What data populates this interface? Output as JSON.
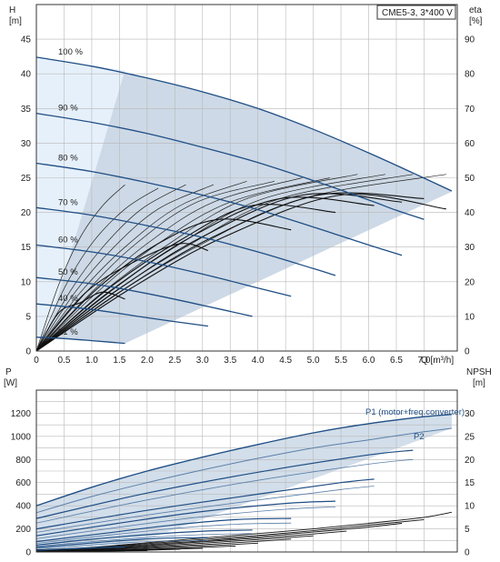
{
  "chart_data": [
    {
      "type": "line",
      "title": "",
      "model_label": "CME5-3, 3*400 V",
      "xlabel": "Q [m³/h]",
      "ylabel": "H",
      "ylabel_unit": "[m]",
      "y2label": "eta",
      "y2label_unit": "[%]",
      "xlim": [
        0,
        7.6
      ],
      "ylim": [
        0,
        50
      ],
      "y2lim": [
        0,
        100
      ],
      "x_ticks": [
        0,
        0.5,
        1.0,
        1.5,
        2.0,
        2.5,
        3.0,
        3.5,
        4.0,
        4.5,
        5.0,
        5.5,
        6.0,
        6.5,
        7.0
      ],
      "x_tick_labels": [
        "0",
        "0.5",
        "1.0",
        "1.5",
        "2.0",
        "2.5",
        "3.0",
        "3.5",
        "4.0",
        "4.5",
        "5.0",
        "5.5",
        "6.0",
        "6.5",
        "7.0"
      ],
      "y_ticks": [
        0,
        5,
        10,
        15,
        20,
        25,
        30,
        35,
        40,
        45
      ],
      "y2_ticks": [
        0,
        10,
        20,
        30,
        40,
        50,
        60,
        70,
        80,
        90
      ],
      "grid": true,
      "colors": {
        "curve": "#1f4e85",
        "area": "#cdd9e6",
        "area_light": "#e6f0fa",
        "eta": "#222222",
        "eta_bold": "#111111"
      },
      "series": [
        {
          "name": "100 %",
          "x": [
            0,
            1.0,
            2.0,
            3.0,
            4.0,
            5.0,
            6.0,
            6.8,
            7.5
          ],
          "values": [
            42.4,
            41.1,
            39.4,
            37.4,
            35.0,
            32.0,
            28.6,
            25.7,
            23.1
          ]
        },
        {
          "name": "90 %",
          "x": [
            0,
            1.0,
            2.0,
            3.0,
            4.0,
            5.0,
            6.0,
            6.5,
            7.0
          ],
          "values": [
            34.3,
            33.0,
            31.4,
            29.4,
            27.2,
            24.6,
            21.8,
            20.3,
            19.0
          ]
        },
        {
          "name": "80 %",
          "x": [
            0,
            1.0,
            2.0,
            3.0,
            4.0,
            5.0,
            5.5,
            6.0,
            6.6
          ],
          "values": [
            27.1,
            25.9,
            24.3,
            22.5,
            20.4,
            17.9,
            16.6,
            15.3,
            13.8
          ]
        },
        {
          "name": "70 %",
          "x": [
            0,
            1.0,
            2.0,
            3.0,
            4.0,
            5.0,
            5.4
          ],
          "values": [
            20.7,
            19.6,
            18.1,
            16.4,
            14.3,
            11.9,
            10.9
          ]
        },
        {
          "name": "60 %",
          "x": [
            0,
            1.0,
            2.0,
            3.0,
            4.0,
            4.6
          ],
          "values": [
            15.3,
            14.3,
            12.9,
            11.1,
            9.1,
            7.9
          ]
        },
        {
          "name": "50 %",
          "x": [
            0,
            1.0,
            2.0,
            3.0,
            3.9
          ],
          "values": [
            10.6,
            9.7,
            8.3,
            6.6,
            5.0
          ]
        },
        {
          "name": "40 %",
          "x": [
            0,
            1.0,
            2.0,
            3.1
          ],
          "values": [
            6.8,
            6.0,
            4.8,
            3.6
          ]
        },
        {
          "name": "21 %",
          "x": [
            0,
            0.5,
            1.0,
            1.6
          ],
          "values": [
            2.0,
            1.8,
            1.5,
            1.1
          ]
        }
      ],
      "eta_curves": [
        {
          "x": [
            0,
            0.4,
            0.8,
            1.2,
            1.6
          ],
          "values": [
            0,
            19,
            33,
            42,
            48
          ]
        },
        {
          "x": [
            0,
            0.5,
            1.0,
            1.6,
            2.2
          ],
          "values": [
            0,
            18,
            31,
            41,
            47
          ]
        },
        {
          "x": [
            0,
            0.6,
            1.2,
            1.9,
            2.7
          ],
          "values": [
            0,
            17,
            30,
            41,
            48
          ]
        },
        {
          "x": [
            0,
            0.7,
            1.4,
            2.2,
            3.2
          ],
          "values": [
            0,
            17,
            30,
            41,
            48
          ]
        },
        {
          "x": [
            0,
            0.8,
            1.6,
            2.6,
            3.8
          ],
          "values": [
            0,
            17,
            30,
            42,
            49
          ]
        },
        {
          "x": [
            0,
            0.9,
            1.8,
            2.9,
            4.3
          ],
          "values": [
            0,
            17,
            31,
            43,
            49
          ]
        },
        {
          "x": [
            0,
            1.0,
            2.0,
            3.2,
            4.8
          ],
          "values": [
            0,
            17,
            31,
            43,
            50
          ]
        },
        {
          "x": [
            0,
            1.1,
            2.2,
            3.5,
            5.3
          ],
          "values": [
            0,
            17,
            31,
            43,
            50
          ]
        },
        {
          "x": [
            0,
            1.2,
            2.4,
            3.8,
            5.8
          ],
          "values": [
            0,
            17,
            31,
            44,
            51
          ]
        },
        {
          "x": [
            0,
            1.3,
            2.6,
            4.1,
            6.3
          ],
          "values": [
            0,
            17,
            31,
            44,
            51
          ]
        },
        {
          "x": [
            0,
            1.4,
            2.8,
            4.4,
            6.8
          ],
          "values": [
            0,
            17,
            31,
            44,
            51
          ]
        },
        {
          "x": [
            0,
            1.5,
            3.0,
            4.8,
            7.4
          ],
          "values": [
            0,
            17,
            31,
            44,
            51
          ]
        },
        {
          "x": [
            0,
            0.4,
            0.8,
            1.2,
            1.6
          ],
          "values": [
            0,
            11,
            14,
            17,
            15
          ]
        },
        {
          "x": [
            0,
            0.9,
            1.8,
            2.6,
            3.1
          ],
          "values": [
            0,
            17,
            26,
            31,
            29
          ]
        },
        {
          "x": [
            0,
            1.1,
            2.2,
            3.3,
            4.6
          ],
          "values": [
            0,
            18,
            31,
            38,
            35
          ]
        },
        {
          "x": [
            0,
            1.3,
            2.6,
            3.9,
            5.4
          ],
          "values": [
            0,
            18,
            32,
            42,
            40
          ]
        },
        {
          "x": [
            0,
            1.4,
            2.8,
            4.4,
            6.1
          ],
          "values": [
            0,
            18,
            33,
            44,
            42
          ]
        },
        {
          "x": [
            0,
            1.5,
            3.0,
            4.8,
            6.6
          ],
          "values": [
            0,
            18,
            33,
            45,
            43
          ]
        },
        {
          "x": [
            0,
            1.6,
            3.2,
            5.1,
            7.0
          ],
          "values": [
            0,
            18,
            33,
            45,
            44
          ]
        },
        {
          "x": [
            0,
            1.7,
            3.4,
            5.5,
            7.4
          ],
          "values": [
            0,
            18,
            33,
            45,
            41
          ]
        }
      ]
    },
    {
      "type": "line",
      "title": "",
      "xlabel": "",
      "ylabel": "P",
      "ylabel_unit": "[W]",
      "y2label": "NPSH",
      "y2label_unit": "[m]",
      "xlim": [
        0,
        7.6
      ],
      "ylim": [
        0,
        1400
      ],
      "y2lim": [
        0,
        35
      ],
      "y_ticks": [
        0,
        200,
        400,
        600,
        800,
        1000,
        1200
      ],
      "y2_ticks": [
        0,
        5,
        10,
        15,
        20,
        25,
        30
      ],
      "grid": true,
      "colors": {
        "p1": "#1f4e85",
        "p2": "#5a7fa8",
        "area": "#d2deea",
        "npsh": "#111111"
      },
      "series": [
        {
          "name": "P1 (motor+freq.converter)",
          "x": [
            0,
            1.0,
            2.0,
            3.0,
            4.0,
            5.0,
            6.0,
            7.0,
            7.5
          ],
          "values": [
            400,
            560,
            700,
            820,
            930,
            1030,
            1110,
            1170,
            1190
          ]
        },
        {
          "name": "P2",
          "x": [
            0,
            1.0,
            2.0,
            3.0,
            4.0,
            5.0,
            6.0,
            7.0,
            7.5
          ],
          "values": [
            340,
            480,
            600,
            710,
            810,
            900,
            970,
            1040,
            1070
          ]
        }
      ],
      "p1_curves": [
        {
          "x": [
            0,
            2.0,
            4.0,
            6.0,
            6.8
          ],
          "values": [
            290,
            510,
            690,
            840,
            880
          ]
        },
        {
          "x": [
            0,
            2.0,
            4.0,
            5.5,
            6.1
          ],
          "values": [
            200,
            360,
            500,
            600,
            630
          ]
        },
        {
          "x": [
            0,
            1.5,
            3.0,
            4.5,
            5.4
          ],
          "values": [
            140,
            250,
            350,
            420,
            440
          ]
        },
        {
          "x": [
            0,
            1.2,
            2.4,
            3.6,
            4.6
          ],
          "values": [
            90,
            160,
            230,
            280,
            290
          ]
        },
        {
          "x": [
            0,
            1.0,
            2.0,
            3.0,
            3.9
          ],
          "values": [
            60,
            110,
            150,
            180,
            190
          ]
        },
        {
          "x": [
            0,
            0.8,
            1.6,
            2.4,
            3.1
          ],
          "values": [
            40,
            70,
            100,
            120,
            125
          ]
        },
        {
          "x": [
            0,
            0.5,
            1.0,
            1.6
          ],
          "values": [
            15,
            25,
            35,
            45
          ]
        }
      ],
      "p2_curves": [
        {
          "x": [
            0,
            2.0,
            4.0,
            6.0,
            6.8
          ],
          "values": [
            250,
            450,
            620,
            760,
            800
          ]
        },
        {
          "x": [
            0,
            2.0,
            4.0,
            5.5,
            6.1
          ],
          "values": [
            170,
            320,
            450,
            540,
            570
          ]
        },
        {
          "x": [
            0,
            1.5,
            3.0,
            4.5,
            5.4
          ],
          "values": [
            115,
            215,
            305,
            370,
            390
          ]
        },
        {
          "x": [
            0,
            1.2,
            2.4,
            3.6,
            4.6
          ],
          "values": [
            75,
            140,
            200,
            240,
            250
          ]
        },
        {
          "x": [
            0,
            1.0,
            2.0,
            3.0,
            3.9
          ],
          "values": [
            50,
            90,
            125,
            150,
            160
          ]
        },
        {
          "x": [
            0,
            0.8,
            1.6,
            2.4,
            3.1
          ],
          "values": [
            30,
            55,
            80,
            95,
            100
          ]
        }
      ],
      "npsh_curves": [
        {
          "x": [
            0,
            1.0,
            2.0,
            3.0,
            4.0,
            5.0,
            6.0,
            7.0,
            7.5
          ],
          "values": [
            0.5,
            1.0,
            2.0,
            3.0,
            4.0,
            5.0,
            6.2,
            7.5,
            8.6
          ]
        },
        {
          "x": [
            0,
            1.0,
            2.0,
            3.0,
            4.0,
            5.0,
            6.0,
            7.0
          ],
          "values": [
            0.4,
            0.9,
            1.8,
            2.7,
            3.6,
            4.6,
            5.8,
            7.0
          ]
        },
        {
          "x": [
            0,
            1.0,
            2.0,
            3.0,
            4.0,
            5.0,
            6.0,
            6.6
          ],
          "values": [
            0.3,
            0.8,
            1.6,
            2.4,
            3.3,
            4.3,
            5.4,
            6.2
          ]
        },
        {
          "x": [
            0,
            1.0,
            2.0,
            3.0,
            4.0,
            5.0,
            5.6
          ],
          "values": [
            0.3,
            0.7,
            1.4,
            2.2,
            3.0,
            3.9,
            4.5
          ]
        },
        {
          "x": [
            0,
            1.0,
            2.0,
            3.0,
            4.0,
            5.0
          ],
          "values": [
            0.2,
            0.6,
            1.2,
            1.9,
            2.7,
            3.5
          ]
        },
        {
          "x": [
            0,
            1.0,
            2.0,
            3.0,
            4.0,
            4.6
          ],
          "values": [
            0.2,
            0.5,
            1.0,
            1.6,
            2.3,
            2.8
          ]
        },
        {
          "x": [
            0,
            1.0,
            2.0,
            3.0,
            4.0
          ],
          "values": [
            0.2,
            0.4,
            0.8,
            1.3,
            1.9
          ]
        },
        {
          "x": [
            0,
            1.0,
            2.0,
            3.0,
            3.6
          ],
          "values": [
            0.1,
            0.3,
            0.6,
            1.0,
            1.3
          ]
        },
        {
          "x": [
            0,
            1.0,
            2.0,
            3.0
          ],
          "values": [
            0.1,
            0.3,
            0.5,
            0.8
          ]
        },
        {
          "x": [
            0,
            1.0,
            2.0,
            2.6
          ],
          "values": [
            0.1,
            0.2,
            0.4,
            0.6
          ]
        },
        {
          "x": [
            0,
            1.0,
            2.0
          ],
          "values": [
            0.1,
            0.2,
            0.3
          ]
        },
        {
          "x": [
            0,
            0.8,
            1.6
          ],
          "values": [
            0.1,
            0.15,
            0.25
          ]
        }
      ]
    }
  ]
}
